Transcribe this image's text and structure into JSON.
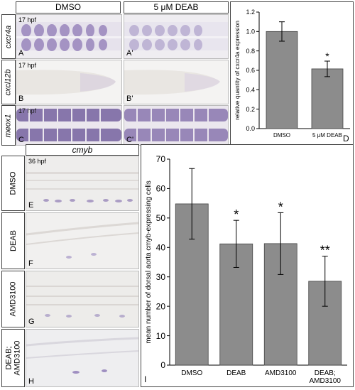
{
  "top": {
    "headers": [
      "DMSO",
      "5 μM DEAB"
    ],
    "rows": [
      {
        "gene": "cxcr4a",
        "stage": "17 hpf",
        "labels": [
          "A",
          "A'"
        ]
      },
      {
        "gene": "cxcl12b",
        "stage": "17 hpf",
        "labels": [
          "B",
          "B'"
        ]
      },
      {
        "gene": "meox1",
        "stage": "17 hpf",
        "labels": [
          "C",
          "C'"
        ]
      }
    ]
  },
  "bottom": {
    "header": "cmyb",
    "stage": "36 hpf",
    "rows": [
      {
        "label": "DMSO",
        "panel": "E"
      },
      {
        "label": "DEAB",
        "panel": "F"
      },
      {
        "label": "AMD3100",
        "panel": "G"
      },
      {
        "label": "DEAB;\nAMD3100",
        "panel": "H"
      }
    ]
  },
  "chart_data": [
    {
      "panel": "D",
      "type": "bar",
      "categories": [
        "DMSO",
        "5 μM DEAB"
      ],
      "values": [
        1.0,
        0.615
      ],
      "errors": [
        0.1,
        0.08
      ],
      "significance": [
        "",
        "*"
      ],
      "ylabel": "relative quantity of cxcr4a expression",
      "yticks": [
        "0.0",
        "0.2",
        "0.4",
        "0.6",
        "0.8",
        "1.0",
        "1.2"
      ],
      "ylim": [
        0,
        1.2
      ],
      "bar_color": "#8c8c8c",
      "grid": false
    },
    {
      "panel": "I",
      "type": "bar",
      "categories": [
        "DMSO",
        "DEAB",
        "AMD3100",
        "DEAB;\nAMD3100"
      ],
      "values": [
        54.8,
        41.2,
        41.3,
        28.5
      ],
      "errors": [
        12,
        8,
        10.5,
        8.5
      ],
      "significance": [
        "",
        "*",
        "*",
        "**"
      ],
      "ylabel": "mean number of dorsal aorta cmyb-expressing cells",
      "yticks": [
        "0",
        "10",
        "20",
        "30",
        "40",
        "50",
        "60",
        "70"
      ],
      "ylim": [
        0,
        70
      ],
      "bar_color": "#8c8c8c",
      "grid": false
    }
  ]
}
